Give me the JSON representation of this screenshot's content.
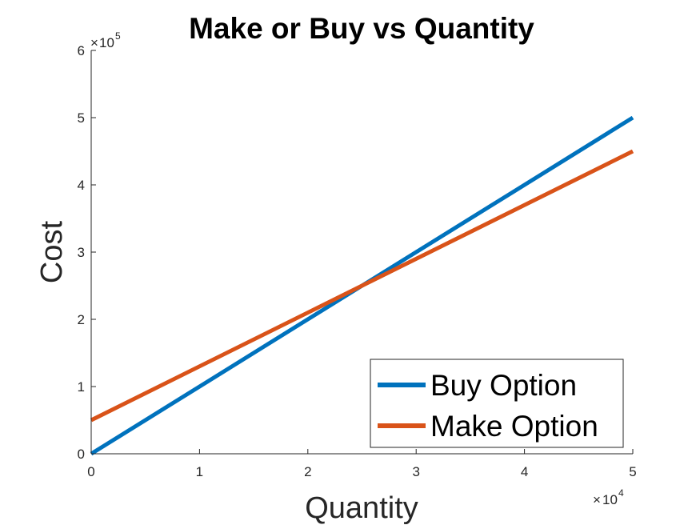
{
  "chart_data": {
    "type": "line",
    "title": "Make or Buy vs Quantity",
    "xlabel": "Quantity",
    "ylabel": "Cost",
    "x_multiplier_label": "10",
    "x_multiplier_exponent": "4",
    "y_multiplier_label": "10",
    "y_multiplier_exponent": "5",
    "xlim": [
      0,
      5
    ],
    "ylim": [
      0,
      6
    ],
    "x_ticks": [
      "0",
      "1",
      "2",
      "3",
      "4",
      "5"
    ],
    "y_ticks": [
      "0",
      "1",
      "2",
      "3",
      "4",
      "5",
      "6"
    ],
    "grid": false,
    "legend_position": "bottom-right",
    "series": [
      {
        "name": "Buy Option",
        "color": "#0072BD",
        "x": [
          0,
          5
        ],
        "y": [
          0,
          5
        ]
      },
      {
        "name": "Make Option",
        "color": "#D95319",
        "x": [
          0,
          5
        ],
        "y": [
          0.5,
          4.5
        ]
      }
    ]
  }
}
